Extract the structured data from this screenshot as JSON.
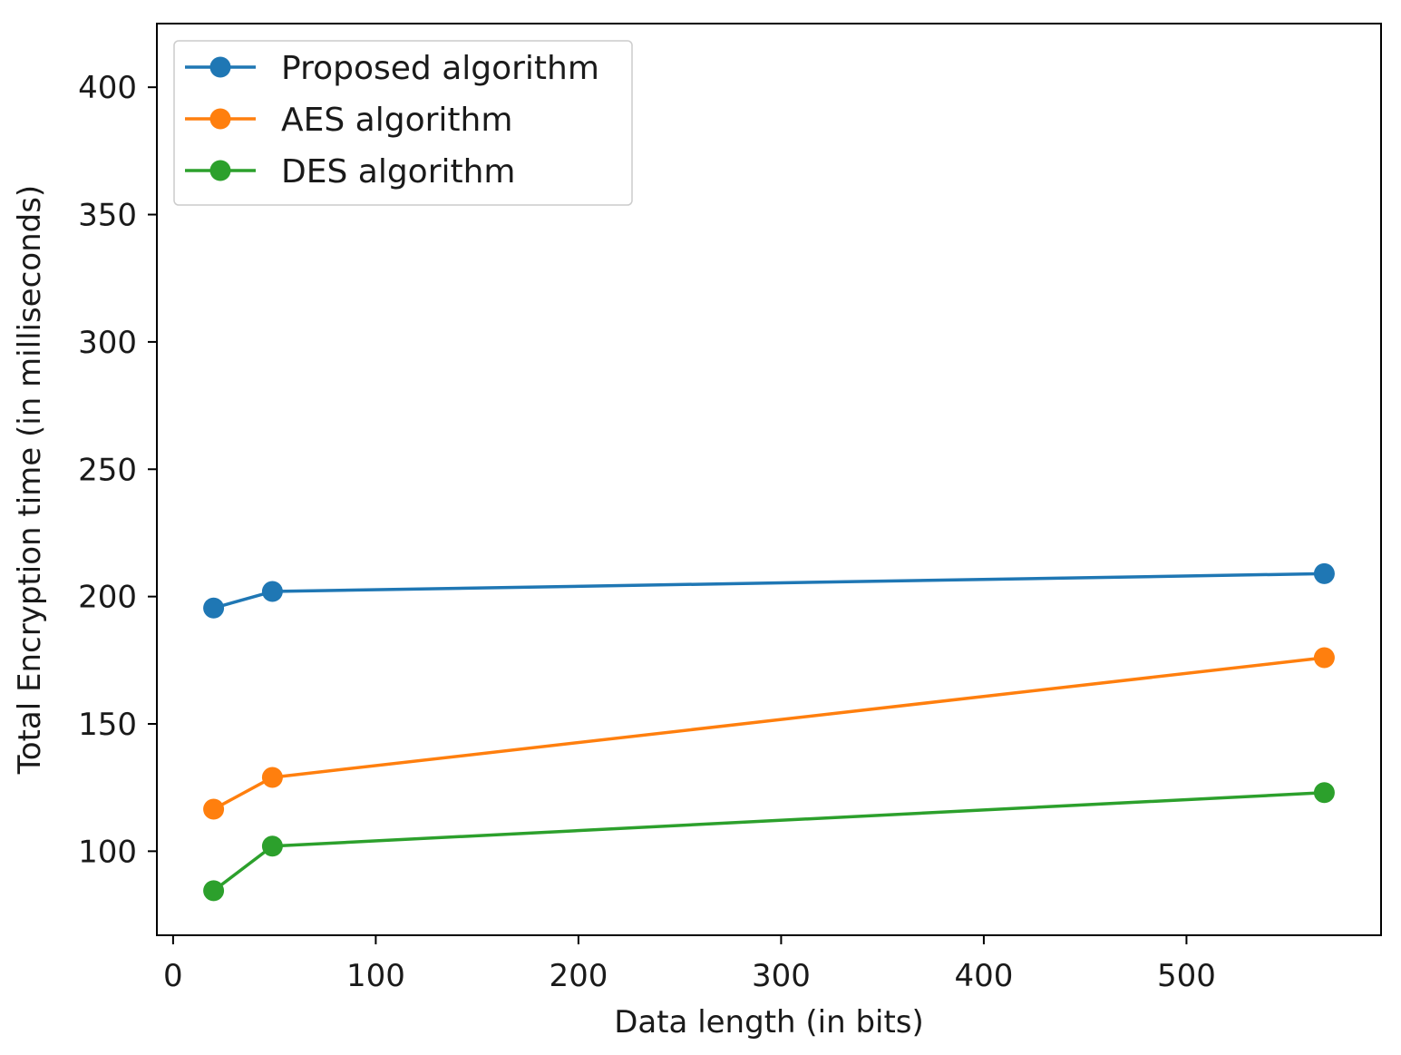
{
  "chart_data": {
    "type": "line",
    "title": "",
    "xlabel": "Data length (in bits)",
    "ylabel": "Total Encryption time (in milliseconds)",
    "xlim": [
      -8,
      596
    ],
    "ylim": [
      67,
      425
    ],
    "xticks": [
      0,
      100,
      200,
      300,
      400,
      500
    ],
    "yticks": [
      100,
      150,
      200,
      250,
      300,
      350,
      400
    ],
    "grid": false,
    "legend_position": "top-left",
    "x": [
      20,
      49,
      568
    ],
    "series": [
      {
        "name": "Proposed algorithm",
        "color": "#1f77b4",
        "values": [
          195.5,
          202,
          209
        ]
      },
      {
        "name": "AES algorithm",
        "color": "#ff7f0e",
        "values": [
          116.5,
          129,
          176
        ]
      },
      {
        "name": "DES algorithm",
        "color": "#2ca02c",
        "values": [
          84.5,
          102,
          123
        ]
      }
    ]
  }
}
